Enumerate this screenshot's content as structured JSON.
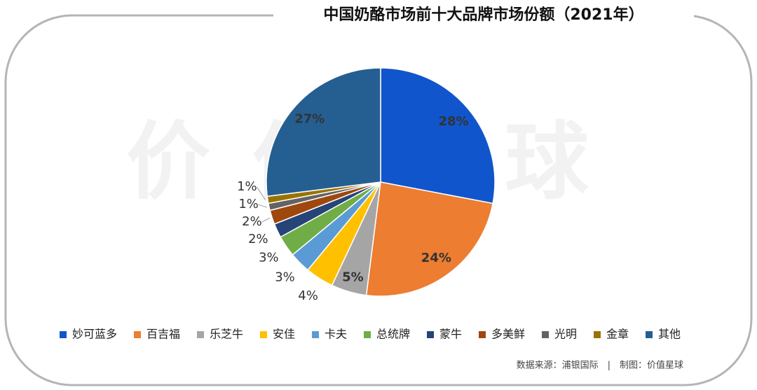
{
  "chart_data": {
    "type": "pie",
    "title": "中国奶酪市场前十大品牌市场份额（2021年）",
    "categories": [
      "妙可蓝多",
      "百吉福",
      "乐芝牛",
      "安佳",
      "卡夫",
      "总统牌",
      "蒙牛",
      "多美鲜",
      "光明",
      "金章",
      "其他"
    ],
    "values": [
      28,
      24,
      5,
      4,
      3,
      3,
      2,
      2,
      1,
      1,
      27
    ],
    "value_labels": [
      "28%",
      "24%",
      "5%",
      "4%",
      "3%",
      "3%",
      "2%",
      "2%",
      "1%",
      "1%",
      "27%"
    ],
    "colors": [
      "#1155cc",
      "#ed7d31",
      "#a5a5a5",
      "#ffc000",
      "#5b9bd5",
      "#70ad47",
      "#264478",
      "#9e480e",
      "#636363",
      "#997300",
      "#255e91"
    ],
    "legend": "bottom",
    "source": "数据来源：浦银国际　|　制图：价值星球",
    "watermark": "价值星球"
  }
}
